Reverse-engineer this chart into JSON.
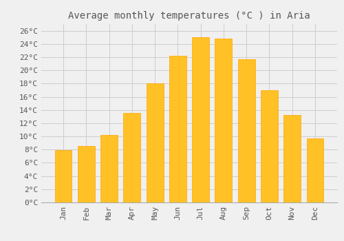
{
  "title": "Average monthly temperatures (°C ) in Aria",
  "months": [
    "Jan",
    "Feb",
    "Mar",
    "Apr",
    "May",
    "Jun",
    "Jul",
    "Aug",
    "Sep",
    "Oct",
    "Nov",
    "Dec"
  ],
  "values": [
    7.9,
    8.5,
    10.2,
    13.6,
    18.0,
    22.2,
    25.0,
    24.8,
    21.7,
    17.0,
    13.2,
    9.7
  ],
  "bar_color": "#FFC125",
  "bar_edge_color": "#FFA500",
  "background_color": "#f0f0f0",
  "grid_color": "#cccccc",
  "text_color": "#555555",
  "ylim": [
    0,
    27
  ],
  "yticks": [
    0,
    2,
    4,
    6,
    8,
    10,
    12,
    14,
    16,
    18,
    20,
    22,
    24,
    26
  ],
  "title_fontsize": 10,
  "tick_fontsize": 8,
  "font_family": "monospace"
}
